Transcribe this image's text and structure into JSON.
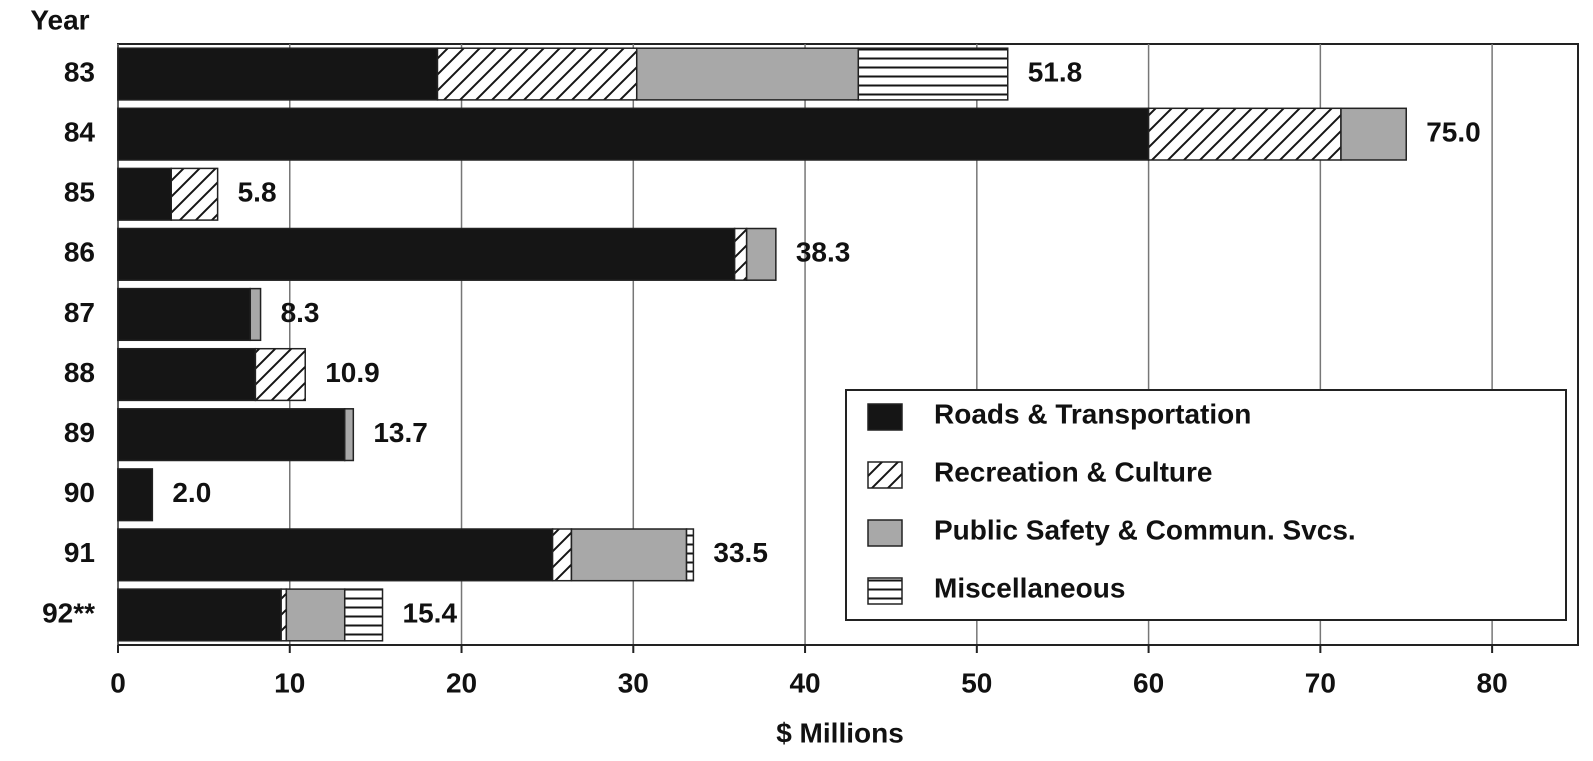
{
  "chart_data": {
    "type": "stacked-barh",
    "y_axis_label": "Year",
    "x_axis_label": "$ Millions",
    "categories": [
      "83",
      "84",
      "85",
      "86",
      "87",
      "88",
      "89",
      "90",
      "91",
      "92**"
    ],
    "series": [
      {
        "name": "Roads & Transportation",
        "color": "#151515",
        "pattern": "solid",
        "values": [
          18.6,
          60.0,
          3.1,
          35.9,
          7.7,
          8.0,
          13.2,
          2.0,
          25.3,
          9.5
        ]
      },
      {
        "name": "Recreation & Culture",
        "color": "#151515",
        "pattern": "diagonal",
        "values": [
          11.6,
          11.2,
          2.7,
          0.7,
          0,
          2.9,
          0,
          0,
          1.1,
          0.3
        ]
      },
      {
        "name": "Public Safety & Commun. Svcs.",
        "color": "#a8a8a8",
        "pattern": "solid",
        "values": [
          12.9,
          3.8,
          0,
          1.7,
          0.6,
          0,
          0.5,
          0,
          6.7,
          3.4
        ]
      },
      {
        "name": "Miscellaneous",
        "color": "#151515",
        "pattern": "horizontal",
        "values": [
          8.7,
          0,
          0,
          0,
          0,
          0,
          0,
          0,
          0.4,
          2.2
        ]
      }
    ],
    "total_labels": [
      "51.8",
      "75.0",
      "5.8",
      "38.3",
      "8.3",
      "10.9",
      "13.7",
      "2.0",
      "33.5",
      "15.4"
    ],
    "xlim": [
      0,
      85
    ],
    "xticks": [
      0,
      10,
      20,
      30,
      40,
      50,
      60,
      70,
      80
    ],
    "grid": true,
    "legend": "lower-right"
  }
}
